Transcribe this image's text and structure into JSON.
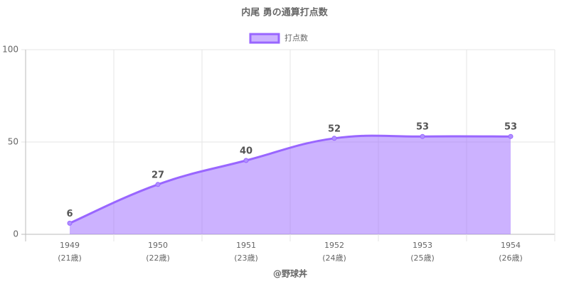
{
  "chart_data": {
    "type": "line",
    "title": "内尾 勇の通算打点数",
    "categories": [
      [
        "1949",
        "(21歳)"
      ],
      [
        "1950",
        "(22歳)"
      ],
      [
        "1951",
        "(23歳)"
      ],
      [
        "1952",
        "(24歳)"
      ],
      [
        "1953",
        "(25歳)"
      ],
      [
        "1954",
        "(26歳)"
      ]
    ],
    "series": [
      {
        "name": "打点数",
        "color": "#9966ff",
        "fill": "rgba(153,102,255,0.5)",
        "values": [
          6,
          27,
          40,
          52,
          53,
          53
        ]
      }
    ],
    "ylim": [
      0,
      100
    ],
    "yticks": [
      0,
      50,
      100
    ],
    "grid": true,
    "legend": "top",
    "xlabel": "@野球丼"
  }
}
